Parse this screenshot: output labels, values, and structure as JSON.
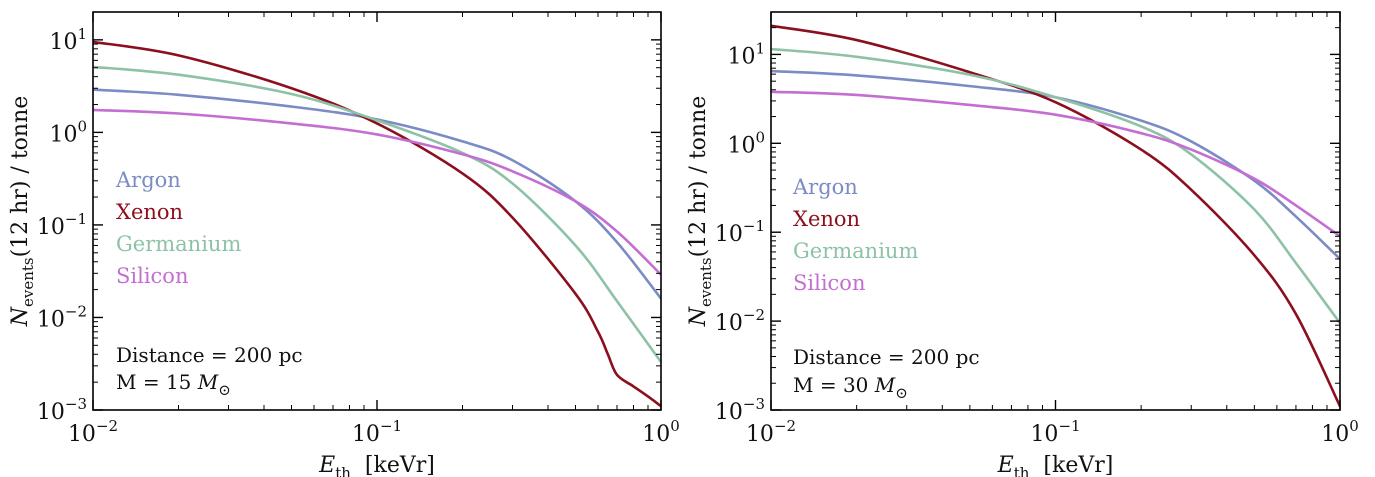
{
  "chart_data": [
    {
      "type": "line",
      "xlabel": {
        "main": "E",
        "sub": "th",
        "units": "[keVr]"
      },
      "ylabel": {
        "main": "N",
        "sub": "events",
        "rest": "(12 hr) / tonne"
      },
      "xscale": "log",
      "yscale": "log",
      "xlim": [
        0.01,
        1
      ],
      "ylim": [
        0.001,
        20
      ],
      "xticks": [
        {
          "base": "10",
          "exp": "−2"
        },
        {
          "base": "10",
          "exp": "−1"
        },
        {
          "base": "10",
          "exp": "0"
        }
      ],
      "yticks": [
        {
          "base": "10",
          "exp": "−3"
        },
        {
          "base": "10",
          "exp": "−2"
        },
        {
          "base": "10",
          "exp": "−1"
        },
        {
          "base": "10",
          "exp": "0"
        },
        {
          "base": "10",
          "exp": "1"
        }
      ],
      "legend_placement": "left",
      "annotation": {
        "line1": "Distance = 200 pc",
        "line2_prefix": "M = 15 ",
        "line2_symbol": "M",
        "line2_sub": "⊙"
      },
      "series": [
        {
          "name": "Argon",
          "color": "#7b8cc4",
          "x": [
            0.01,
            0.02,
            0.05,
            0.1,
            0.2,
            0.3,
            0.5,
            0.7,
            1.0
          ],
          "y": [
            2.9,
            2.55,
            1.9,
            1.38,
            0.8,
            0.5,
            0.18,
            0.065,
            0.016
          ]
        },
        {
          "name": "Xenon",
          "color": "#8c0f1e",
          "x": [
            0.01,
            0.02,
            0.05,
            0.1,
            0.2,
            0.3,
            0.5,
            0.6,
            0.65,
            0.7,
            0.8,
            0.9,
            1.0
          ],
          "y": [
            9.5,
            6.8,
            3.0,
            1.25,
            0.36,
            0.12,
            0.018,
            0.007,
            0.004,
            0.0024,
            0.0018,
            0.0014,
            0.0011
          ]
        },
        {
          "name": "Germanium",
          "color": "#8ec2a6",
          "x": [
            0.01,
            0.02,
            0.05,
            0.1,
            0.2,
            0.3,
            0.5,
            0.7,
            1.0
          ],
          "y": [
            5.1,
            4.2,
            2.6,
            1.35,
            0.6,
            0.28,
            0.06,
            0.015,
            0.0033
          ]
        },
        {
          "name": "Silicon",
          "color": "#c46ed2",
          "x": [
            0.01,
            0.02,
            0.05,
            0.1,
            0.2,
            0.3,
            0.5,
            0.7,
            1.0
          ],
          "y": [
            1.75,
            1.6,
            1.25,
            0.95,
            0.58,
            0.38,
            0.18,
            0.085,
            0.029
          ]
        }
      ]
    },
    {
      "type": "line",
      "xlabel": {
        "main": "E",
        "sub": "th",
        "units": "[keVr]"
      },
      "ylabel": {
        "main": "N",
        "sub": "events",
        "rest": "(12 hr) / tonne"
      },
      "xscale": "log",
      "yscale": "log",
      "xlim": [
        0.01,
        1
      ],
      "ylim": [
        0.001,
        30
      ],
      "xticks": [
        {
          "base": "10",
          "exp": "−2"
        },
        {
          "base": "10",
          "exp": "−1"
        },
        {
          "base": "10",
          "exp": "0"
        }
      ],
      "yticks": [
        {
          "base": "10",
          "exp": "−3"
        },
        {
          "base": "10",
          "exp": "−2"
        },
        {
          "base": "10",
          "exp": "−1"
        },
        {
          "base": "10",
          "exp": "0"
        },
        {
          "base": "10",
          "exp": "1"
        }
      ],
      "legend_placement": "left",
      "annotation": {
        "line1": "Distance = 200 pc",
        "line2_prefix": "M = 30 ",
        "line2_symbol": "M",
        "line2_sub": "⊙"
      },
      "series": [
        {
          "name": "Argon",
          "color": "#7b8cc4",
          "x": [
            0.01,
            0.02,
            0.05,
            0.1,
            0.2,
            0.3,
            0.5,
            0.7,
            1.0
          ],
          "y": [
            6.5,
            5.8,
            4.4,
            3.3,
            1.8,
            1.05,
            0.38,
            0.15,
            0.05
          ]
        },
        {
          "name": "Xenon",
          "color": "#8c0f1e",
          "x": [
            0.01,
            0.02,
            0.05,
            0.1,
            0.2,
            0.3,
            0.5,
            0.7,
            1.0
          ],
          "y": [
            21.0,
            14.5,
            6.3,
            2.9,
            0.85,
            0.3,
            0.055,
            0.012,
            0.0011
          ]
        },
        {
          "name": "Germanium",
          "color": "#8ec2a6",
          "x": [
            0.01,
            0.02,
            0.05,
            0.1,
            0.2,
            0.3,
            0.5,
            0.7,
            1.0
          ],
          "y": [
            11.5,
            9.4,
            5.9,
            3.3,
            1.55,
            0.75,
            0.18,
            0.045,
            0.0095
          ]
        },
        {
          "name": "Silicon",
          "color": "#c46ed2",
          "x": [
            0.01,
            0.02,
            0.05,
            0.1,
            0.2,
            0.3,
            0.5,
            0.7,
            1.0
          ],
          "y": [
            3.8,
            3.5,
            2.7,
            2.1,
            1.3,
            0.85,
            0.4,
            0.2,
            0.09
          ]
        }
      ]
    }
  ]
}
